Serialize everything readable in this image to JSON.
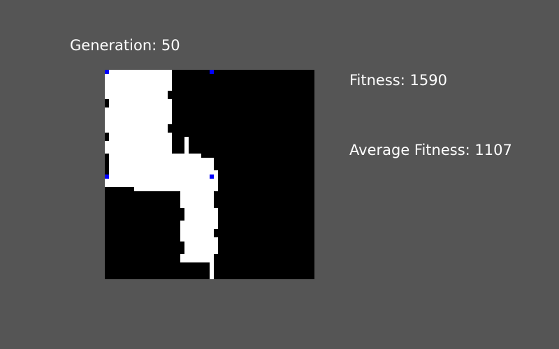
{
  "generation": {
    "label": "Generation:",
    "value": "50"
  },
  "fitness": {
    "label": "Fitness:",
    "value": "1590"
  },
  "average_fitness": {
    "label": "Average Fitness:",
    "value": "1107"
  },
  "colors": {
    "background": "#555555",
    "grid_empty": "#000000",
    "grid_filled": "#ffffff",
    "marker": "#0000ff",
    "text": "#ffffff"
  }
}
